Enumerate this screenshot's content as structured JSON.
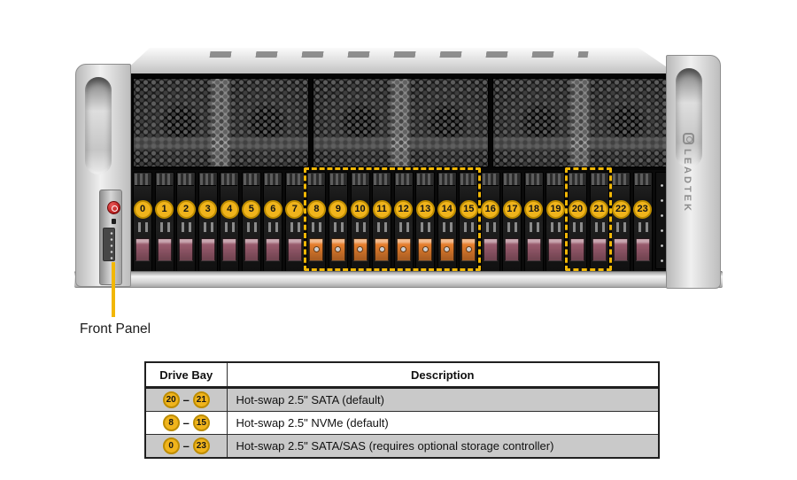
{
  "figure": {
    "callout": {
      "label": "Front Panel"
    },
    "branding": {
      "logo_text": "LEADTEK"
    },
    "drive_bays": {
      "count": 24,
      "numbers": [
        0,
        1,
        2,
        3,
        4,
        5,
        6,
        7,
        8,
        9,
        10,
        11,
        12,
        13,
        14,
        15,
        16,
        17,
        18,
        19,
        20,
        21,
        22,
        23
      ],
      "groups": [
        {
          "from": 0,
          "to": 7,
          "type": "sata",
          "latch_color": "#9a5c6e"
        },
        {
          "from": 8,
          "to": 15,
          "type": "nvme",
          "latch_color": "#e67f2e"
        },
        {
          "from": 16,
          "to": 23,
          "type": "sata",
          "latch_color": "#9a5c6e"
        }
      ],
      "highlight_boxes": [
        {
          "from": 8,
          "to": 15
        },
        {
          "from": 20,
          "to": 21
        }
      ],
      "label_fill": "#f0b41c",
      "label_border": "#bd8c00",
      "highlight_color": "#f2b705"
    },
    "front_panel": {
      "power_button_color": "#c22525"
    }
  },
  "table": {
    "headers": [
      "Drive Bay",
      "Description"
    ],
    "rows": [
      {
        "bay_from": "20",
        "bay_to": "21",
        "separator": "–",
        "description": "Hot-swap 2.5\" SATA (default)"
      },
      {
        "bay_from": "8",
        "bay_to": "15",
        "separator": "–",
        "description": "Hot-swap 2.5\" NVMe (default)"
      },
      {
        "bay_from": "0",
        "bay_to": "23",
        "separator": "–",
        "description": "Hot-swap 2.5\" SATA/SAS (requires optional storage controller)"
      }
    ]
  }
}
